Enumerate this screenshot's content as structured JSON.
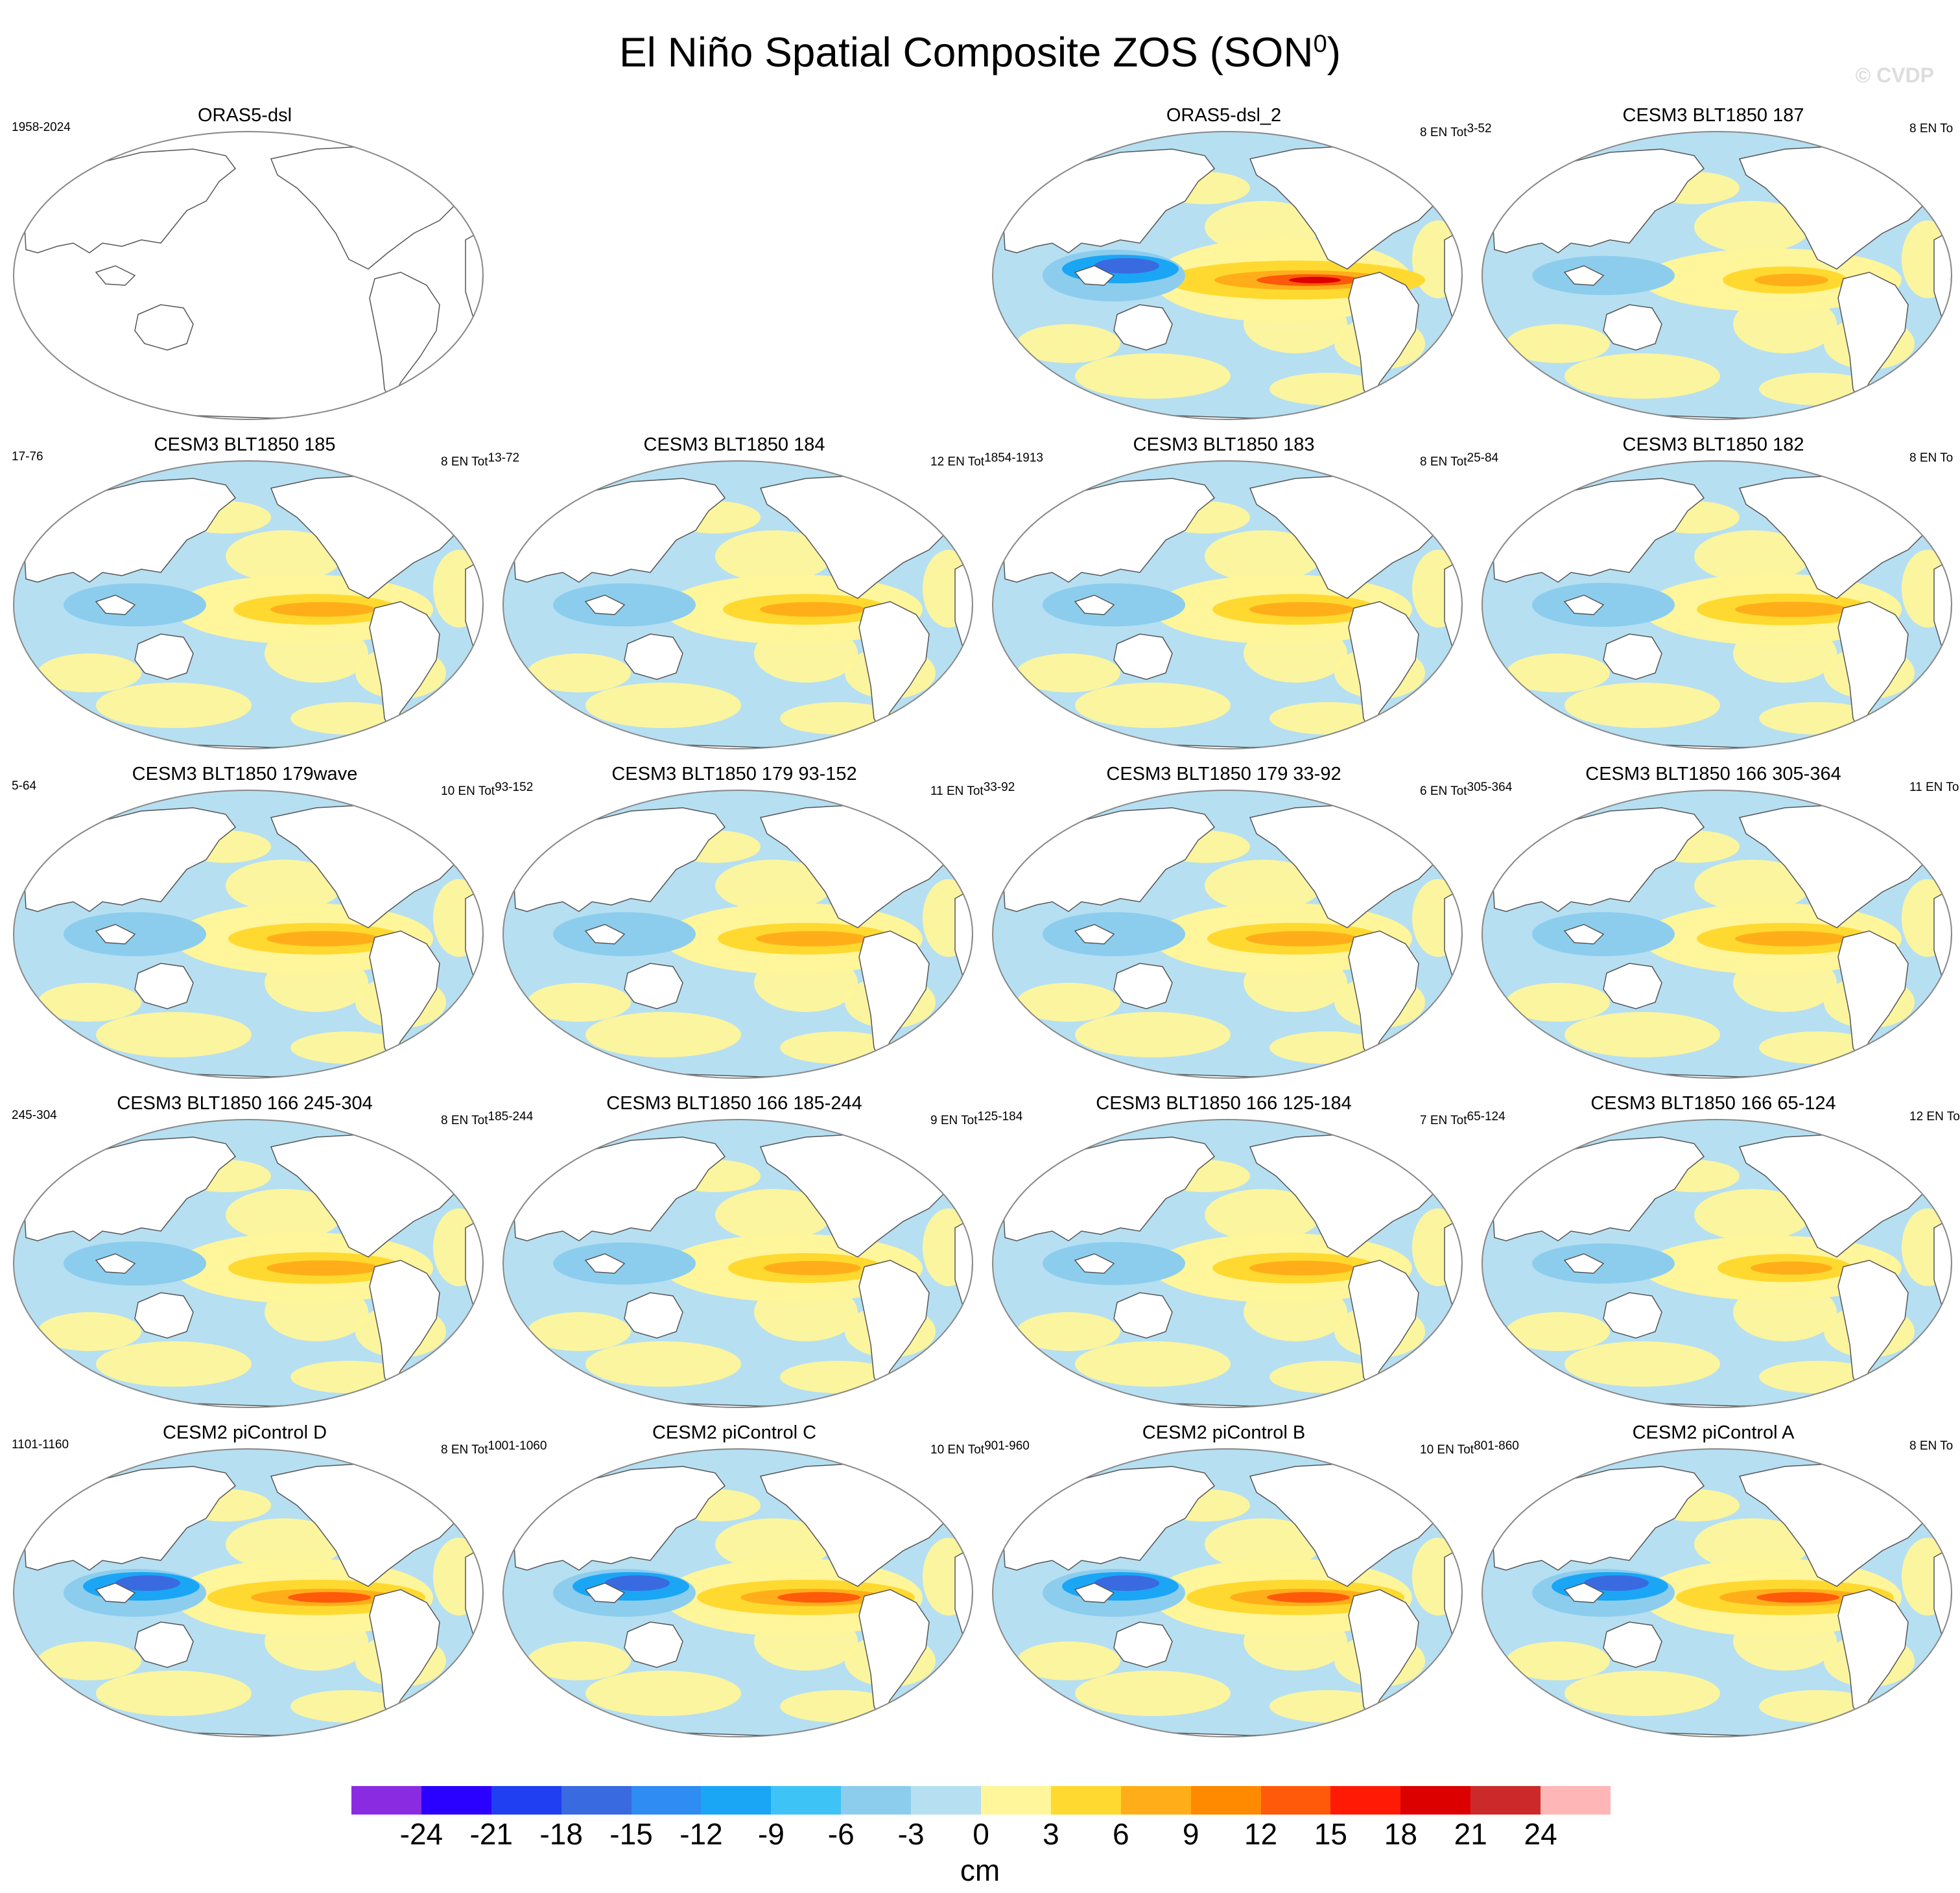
{
  "title": "El Niño Spatial Composite ZOS (SON",
  "title_sup": "0",
  "title_close": ")",
  "watermark": "© CVDP",
  "colors": {
    "ocean_neg_small": "#b6dff2",
    "ocean_pos_small": "#fff59a",
    "land": "#ffffff",
    "coast": "#555555"
  },
  "panels": [
    {
      "title": "ORAS5-dsl",
      "years": "1958-2024",
      "en": "",
      "en_sup": "",
      "data": false
    },
    {
      "title": "ORAS5-dsl_2",
      "years": "",
      "en": "8 EN Tot",
      "en_sup": "3-52",
      "data": true,
      "amp": 1.0,
      "nina": true
    },
    {
      "title": "CESM3 BLT1850 187",
      "years": "",
      "en": "8 EN To",
      "en_sup": "",
      "data": true,
      "amp": 0.35
    },
    {
      "title": "CESM3 BLT1850 185",
      "years": "17-76",
      "en": "8 EN Tot",
      "en_sup": "13-72",
      "data": true,
      "amp": 0.55
    },
    {
      "title": "CESM3 BLT1850 184",
      "years": "",
      "en": "12 EN Tot",
      "en_sup": "1854-1913",
      "data": true,
      "amp": 0.55
    },
    {
      "title": "CESM3 BLT1850 183",
      "years": "",
      "en": "8 EN Tot",
      "en_sup": "25-84",
      "data": true,
      "amp": 0.55
    },
    {
      "title": "CESM3 BLT1850 182",
      "years": "",
      "en": "8 EN To",
      "en_sup": "",
      "data": true,
      "amp": 0.6
    },
    {
      "title": "CESM3 BLT1850 179wave",
      "years": "5-64",
      "en": "10 EN Tot",
      "en_sup": "93-152",
      "data": true,
      "amp": 0.6
    },
    {
      "title": "CESM3 BLT1850 179 93-152",
      "years": "",
      "en": "11 EN Tot",
      "en_sup": "33-92",
      "data": true,
      "amp": 0.6
    },
    {
      "title": "CESM3 BLT1850 179 33-92",
      "years": "",
      "en": "6 EN Tot",
      "en_sup": "305-364",
      "data": true,
      "amp": 0.6
    },
    {
      "title": "CESM3 BLT1850 166 305-364",
      "years": "",
      "en": "11 EN To",
      "en_sup": "",
      "data": true,
      "amp": 0.6
    },
    {
      "title": "CESM3 BLT1850 166 245-304",
      "years": "245-304",
      "en": "8 EN Tot",
      "en_sup": "185-244",
      "data": true,
      "amp": 0.6
    },
    {
      "title": "CESM3 BLT1850 166 185-244",
      "years": "",
      "en": "9 EN Tot",
      "en_sup": "125-184",
      "data": true,
      "amp": 0.5
    },
    {
      "title": "CESM3 BLT1850 166 125-184",
      "years": "",
      "en": "7 EN Tot",
      "en_sup": "65-124",
      "data": true,
      "amp": 0.55
    },
    {
      "title": "CESM3 BLT1850 166 65-124",
      "years": "",
      "en": "12 EN To",
      "en_sup": "",
      "data": true,
      "amp": 0.4
    },
    {
      "title": "CESM2 piControl D",
      "years": "1101-1160",
      "en": "8 EN Tot",
      "en_sup": "1001-1060",
      "data": true,
      "amp": 0.8,
      "nina": true
    },
    {
      "title": "CESM2 piControl C",
      "years": "",
      "en": "10 EN Tot",
      "en_sup": "901-960",
      "data": true,
      "amp": 0.8,
      "nina": true
    },
    {
      "title": "CESM2 piControl B",
      "years": "",
      "en": "10 EN Tot",
      "en_sup": "801-860",
      "data": true,
      "amp": 0.8,
      "nina": true
    },
    {
      "title": "CESM2 piControl A",
      "years": "",
      "en": "8 EN To",
      "en_sup": "",
      "data": true,
      "amp": 0.8,
      "nina": true
    }
  ],
  "colorbar": {
    "colors": [
      "#8a2be2",
      "#2a00ff",
      "#1f3ff0",
      "#3a6ae0",
      "#2e8cf2",
      "#1aa6f5",
      "#3ec3f7",
      "#8ccdee",
      "#b6dff2",
      "#fff59a",
      "#ffd92f",
      "#ffae1a",
      "#ff8a00",
      "#ff5a0a",
      "#ff1a05",
      "#dd0000",
      "#cc2a2a",
      "#ffb6b6"
    ],
    "ticks": [
      "-24",
      "-21",
      "-18",
      "-15",
      "-12",
      "-9",
      "-6",
      "-3",
      "0",
      "3",
      "6",
      "9",
      "12",
      "15",
      "18",
      "21",
      "24"
    ],
    "units": "cm"
  }
}
